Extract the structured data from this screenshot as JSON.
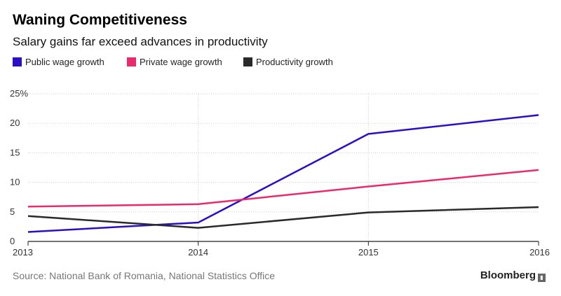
{
  "header": {
    "title": "Waning Competitiveness",
    "subtitle": "Salary gains far exceed advances in productivity"
  },
  "footer": {
    "source": "Source: National Bank of Romania, National Statistics Office",
    "brand": "Bloomberg",
    "brand_icon": "bloomberg-chart-icon"
  },
  "chart_data": {
    "type": "line",
    "title": "Waning Competitiveness",
    "subtitle": "Salary gains far exceed advances in productivity",
    "x": [
      2013,
      2014,
      2015,
      2016
    ],
    "x_ticks": [
      "2013",
      "2014",
      "2015",
      "2016"
    ],
    "y_ticks": [
      "0",
      "5",
      "10",
      "15",
      "20",
      "25%"
    ],
    "ylim": [
      0,
      25
    ],
    "xlim": [
      2013,
      2016
    ],
    "grid": true,
    "legend_position": "top-left",
    "series": [
      {
        "name": "Public wage growth",
        "color": "#2b0fc7",
        "values": [
          1.6,
          3.2,
          18.2,
          21.4
        ]
      },
      {
        "name": "Private wage growth",
        "color": "#ea2a6b",
        "values": [
          5.9,
          6.3,
          9.3,
          12.1
        ]
      },
      {
        "name": "Productivity growth",
        "color": "#2a2a2a",
        "values": [
          4.3,
          2.3,
          4.9,
          5.8
        ]
      }
    ]
  }
}
